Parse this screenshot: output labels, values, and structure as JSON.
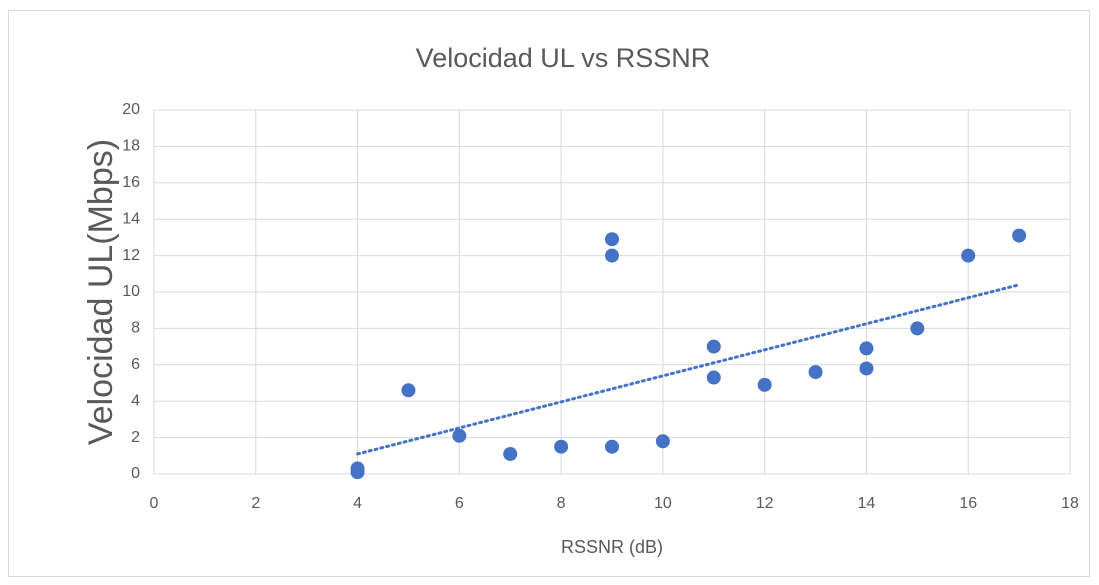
{
  "chart_data": {
    "type": "scatter",
    "title": "Velocidad UL vs RSSNR",
    "x_label": "RSSNR (dB)",
    "y_label": "Velocidad UL(Mbps)",
    "series": [
      {
        "name": "Velocidad UL",
        "color": "#4472c4",
        "x": [
          4,
          4,
          5,
          6,
          7,
          8,
          9,
          9,
          9,
          10,
          11,
          11,
          12,
          13,
          14,
          14,
          15,
          16,
          17
        ],
        "values": [
          0.3,
          0.1,
          4.6,
          2.1,
          1.1,
          1.5,
          1.5,
          12.0,
          12.9,
          1.8,
          7.0,
          5.3,
          4.9,
          5.6,
          6.9,
          5.8,
          8.0,
          12.0,
          13.1
        ]
      }
    ],
    "trendline": {
      "color": "#4472c4",
      "x": [
        4,
        17
      ],
      "values": [
        1.1,
        10.4
      ]
    },
    "xlim": [
      0,
      18
    ],
    "xticks": [
      0,
      2,
      4,
      6,
      8,
      10,
      12,
      14,
      16,
      18
    ],
    "ylim": [
      0,
      20
    ],
    "yticks": [
      0,
      2,
      4,
      6,
      8,
      10,
      12,
      14,
      16,
      18,
      20
    ],
    "grid": true
  }
}
